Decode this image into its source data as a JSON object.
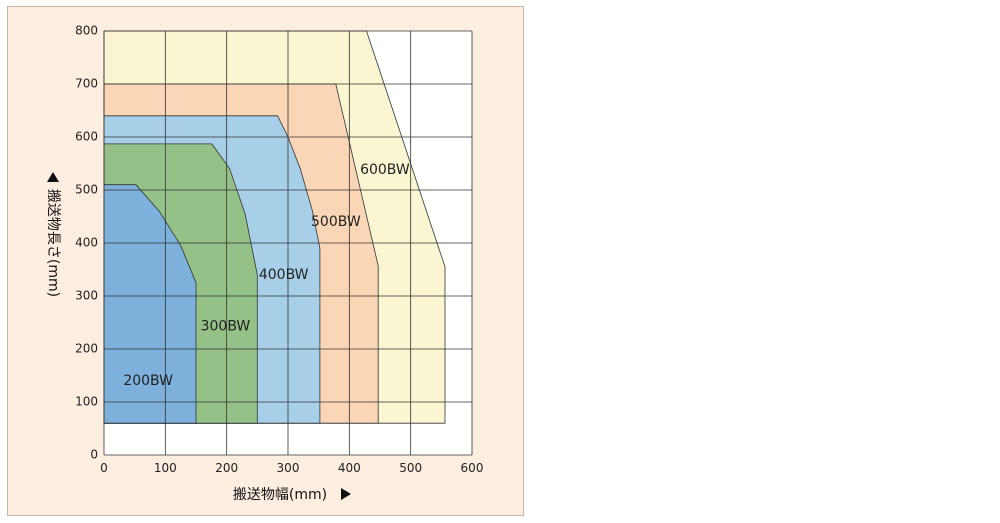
{
  "chart_data": {
    "type": "area",
    "xlabel": "搬送物幅(mm)",
    "ylabel": "搬送物長さ(mm)",
    "xlim": [
      0,
      600
    ],
    "ylim": [
      0,
      800
    ],
    "x_ticks": [
      "0",
      "100",
      "200",
      "300",
      "400",
      "500",
      "600"
    ],
    "y_ticks": [
      "0",
      "100",
      "200",
      "300",
      "400",
      "500",
      "600",
      "700",
      "800"
    ],
    "grid": true,
    "series": [
      {
        "name": "600BW",
        "color": "#fbf6d2",
        "points": [
          [
            0,
            60
          ],
          [
            0,
            800
          ],
          [
            428,
            800
          ],
          [
            556,
            355
          ],
          [
            556,
            60
          ]
        ]
      },
      {
        "name": "500BW",
        "color": "#fbd6b6",
        "points": [
          [
            0,
            60
          ],
          [
            0,
            700
          ],
          [
            378,
            700
          ],
          [
            447,
            357
          ],
          [
            447,
            60
          ]
        ]
      },
      {
        "name": "400BW",
        "color": "#a8cfe8",
        "points": [
          [
            0,
            60
          ],
          [
            0,
            640
          ],
          [
            283,
            640
          ],
          [
            300,
            600
          ],
          [
            320,
            540
          ],
          [
            340,
            460
          ],
          [
            352,
            390
          ],
          [
            352,
            60
          ]
        ]
      },
      {
        "name": "300BW",
        "color": "#95c087",
        "points": [
          [
            0,
            60
          ],
          [
            0,
            587
          ],
          [
            176,
            587
          ],
          [
            205,
            540
          ],
          [
            230,
            455
          ],
          [
            250,
            340
          ],
          [
            250,
            60
          ]
        ]
      },
      {
        "name": "200BW",
        "color": "#7eb0dc",
        "points": [
          [
            0,
            60
          ],
          [
            0,
            510
          ],
          [
            52,
            510
          ],
          [
            90,
            460
          ],
          [
            125,
            395
          ],
          [
            150,
            325
          ],
          [
            150,
            60
          ]
        ]
      }
    ],
    "labels": [
      {
        "text": "200BW",
        "x": 72,
        "y": 140
      },
      {
        "text": "300BW",
        "x": 198,
        "y": 242
      },
      {
        "text": "400BW",
        "x": 293,
        "y": 340
      },
      {
        "text": "500BW",
        "x": 378,
        "y": 440
      },
      {
        "text": "600BW",
        "x": 458,
        "y": 538
      }
    ]
  }
}
